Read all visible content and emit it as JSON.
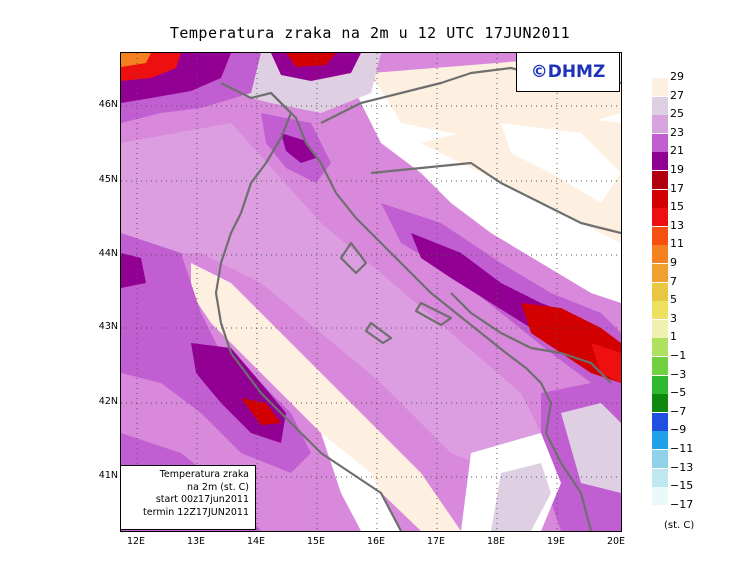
{
  "title": "Temperatura zraka na 2m u 12 UTC 17JUN2011",
  "brand": "©DHMZ",
  "info": {
    "line1": "Temperatura zraka",
    "line2": "na 2m (st. C)",
    "line3": "start 00z17jun2011",
    "line4": "termin 12Z17JUN2011"
  },
  "lat_labels": [
    "46N",
    "45N",
    "44N",
    "43N",
    "42N",
    "41N"
  ],
  "lon_labels": [
    "12E",
    "13E",
    "14E",
    "15E",
    "16E",
    "17E",
    "18E",
    "19E",
    "20E"
  ],
  "legend_unit": "(st. C)",
  "legend_labels": [
    "29",
    "27",
    "25",
    "23",
    "21",
    "19",
    "17",
    "15",
    "13",
    "11",
    "9",
    "7",
    "5",
    "3",
    "1",
    "−1",
    "−3",
    "−5",
    "−7",
    "−9",
    "−11",
    "−13",
    "−15",
    "−17"
  ],
  "legend_colors": [
    "#fdf0e0",
    "#ded0e2",
    "#d7a3de",
    "#c15fd2",
    "#920093",
    "#b00010",
    "#d20000",
    "#ee1010",
    "#f45010",
    "#f48020",
    "#f0a030",
    "#e8c840",
    "#f0e060",
    "#f0f0b0",
    "#b0e060",
    "#70d040",
    "#30b830",
    "#108810",
    "#2050e0",
    "#20a0e8",
    "#90d0e8",
    "#c0e8f0",
    "#eaf8fa"
  ],
  "colors": {
    "brand": "#1f33b8",
    "coast": "#6f6f6f",
    "grid": "#555555"
  }
}
